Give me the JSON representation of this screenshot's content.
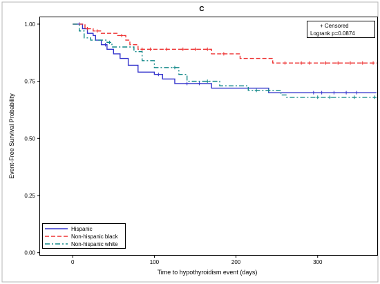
{
  "chart_data": {
    "type": "line",
    "title": "C",
    "xlabel": "Time to hypothyroidism event (days)",
    "ylabel": "Event-Free Survival Probability",
    "xlim": [
      -40,
      373
    ],
    "ylim": [
      -0.01,
      1.03
    ],
    "x_ticks": [
      0,
      100,
      200,
      300
    ],
    "y_ticks": [
      0.0,
      0.25,
      0.5,
      0.75,
      1.0
    ],
    "y_tick_labels": [
      "0.00",
      "0.25",
      "0.50",
      "0.75",
      "1.00"
    ],
    "grid": false,
    "info_box": {
      "censored_label": "+ Censored",
      "logrank_label": "Logrank p=0.0874"
    },
    "legend_position": "bottom-left",
    "series": [
      {
        "name": "Hispanic",
        "color": "#3333cc",
        "dash": "solid",
        "steps": [
          [
            0,
            1.0
          ],
          [
            12,
            0.98
          ],
          [
            18,
            0.96
          ],
          [
            25,
            0.95
          ],
          [
            28,
            0.93
          ],
          [
            35,
            0.91
          ],
          [
            42,
            0.89
          ],
          [
            50,
            0.87
          ],
          [
            58,
            0.85
          ],
          [
            68,
            0.82
          ],
          [
            80,
            0.79
          ],
          [
            100,
            0.78
          ],
          [
            110,
            0.76
          ],
          [
            125,
            0.74
          ],
          [
            170,
            0.72
          ],
          [
            240,
            0.7
          ],
          [
            372,
            0.7
          ]
        ],
        "censored": [
          8,
          40,
          105,
          140,
          155,
          295,
          305,
          320,
          335,
          348
        ]
      },
      {
        "name": "Non-hispanic black",
        "color": "#ee3333",
        "dash": "dashed",
        "steps": [
          [
            0,
            1.0
          ],
          [
            15,
            0.98
          ],
          [
            25,
            0.97
          ],
          [
            35,
            0.96
          ],
          [
            55,
            0.95
          ],
          [
            65,
            0.93
          ],
          [
            70,
            0.91
          ],
          [
            80,
            0.89
          ],
          [
            170,
            0.87
          ],
          [
            205,
            0.85
          ],
          [
            245,
            0.83
          ],
          [
            372,
            0.83
          ]
        ],
        "censored": [
          18,
          30,
          60,
          85,
          95,
          115,
          135,
          150,
          165,
          185,
          260,
          280,
          290,
          310,
          325,
          340,
          355,
          368
        ]
      },
      {
        "name": "Non-hispanic white",
        "color": "#118888",
        "dash": "dashdot",
        "steps": [
          [
            0,
            1.0
          ],
          [
            8,
            0.97
          ],
          [
            14,
            0.94
          ],
          [
            22,
            0.93
          ],
          [
            42,
            0.92
          ],
          [
            48,
            0.9
          ],
          [
            75,
            0.88
          ],
          [
            85,
            0.84
          ],
          [
            100,
            0.81
          ],
          [
            130,
            0.78
          ],
          [
            140,
            0.75
          ],
          [
            180,
            0.73
          ],
          [
            215,
            0.71
          ],
          [
            255,
            0.69
          ],
          [
            262,
            0.68
          ],
          [
            372,
            0.68
          ]
        ],
        "censored": [
          45,
          125,
          165,
          225,
          240,
          300,
          315,
          345,
          370
        ]
      }
    ]
  }
}
